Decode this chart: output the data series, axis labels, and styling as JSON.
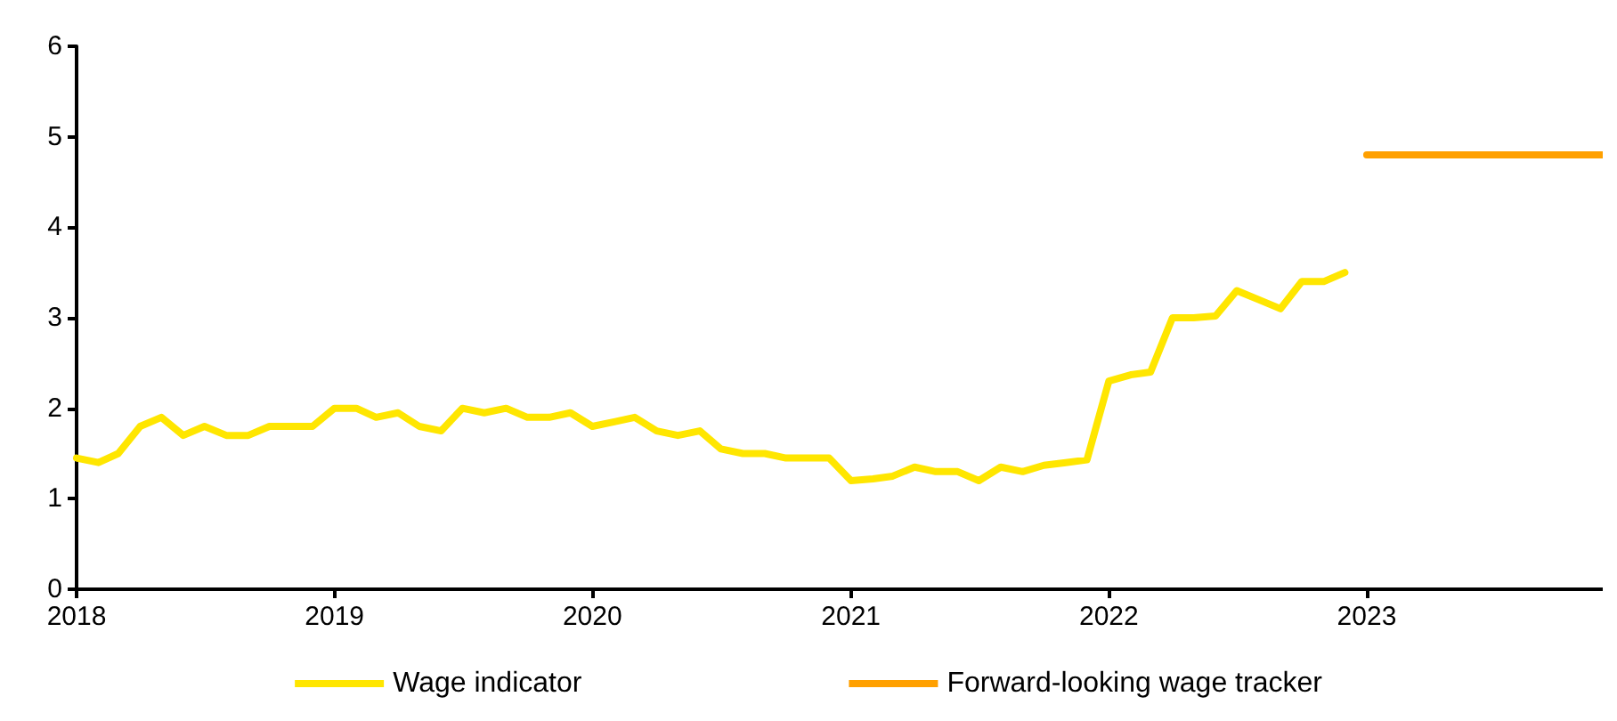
{
  "chart_data": {
    "type": "line",
    "legend": "bottom",
    "grid": false,
    "marker": "none",
    "line_style": "solid",
    "xlim": [
      "2018-01",
      "2023-12"
    ],
    "xticks": [
      "2018",
      "2019",
      "2020",
      "2021",
      "2022",
      "2023"
    ],
    "ylim": [
      0,
      6
    ],
    "yticks": [
      0,
      1,
      2,
      3,
      4,
      5,
      6
    ],
    "series": [
      {
        "name": "Wage indicator",
        "color": "#ffe600",
        "x": [
          "2018-01",
          "2018-02",
          "2018-03",
          "2018-04",
          "2018-05",
          "2018-06",
          "2018-07",
          "2018-08",
          "2018-09",
          "2018-10",
          "2018-11",
          "2018-12",
          "2019-01",
          "2019-02",
          "2019-03",
          "2019-04",
          "2019-05",
          "2019-06",
          "2019-07",
          "2019-08",
          "2019-09",
          "2019-10",
          "2019-11",
          "2019-12",
          "2020-01",
          "2020-02",
          "2020-03",
          "2020-04",
          "2020-05",
          "2020-06",
          "2020-07",
          "2020-08",
          "2020-09",
          "2020-10",
          "2020-11",
          "2020-12",
          "2021-01",
          "2021-02",
          "2021-03",
          "2021-04",
          "2021-05",
          "2021-06",
          "2021-07",
          "2021-08",
          "2021-09",
          "2021-10",
          "2021-11",
          "2021-12",
          "2022-01",
          "2022-02",
          "2022-03",
          "2022-04",
          "2022-05",
          "2022-06",
          "2022-07",
          "2022-08",
          "2022-09",
          "2022-10",
          "2022-11",
          "2022-12"
        ],
        "values": [
          1.45,
          1.4,
          1.5,
          1.8,
          1.9,
          1.7,
          1.8,
          1.7,
          1.7,
          1.8,
          1.8,
          1.8,
          2.0,
          2.0,
          1.9,
          1.95,
          1.8,
          1.75,
          2.0,
          1.95,
          2.0,
          1.9,
          1.9,
          1.95,
          1.8,
          1.85,
          1.9,
          1.75,
          1.7,
          1.75,
          1.55,
          1.5,
          1.5,
          1.45,
          1.45,
          1.45,
          1.2,
          1.22,
          1.25,
          1.35,
          1.3,
          1.3,
          1.2,
          1.35,
          1.3,
          1.37,
          1.4,
          1.43,
          2.3,
          2.37,
          2.4,
          3.0,
          3.0,
          3.02,
          3.3,
          3.2,
          3.1,
          3.4,
          3.4,
          3.5
        ]
      },
      {
        "name": "Forward-looking wage tracker",
        "color": "#ffa000",
        "x": [
          "2023-01",
          "2023-12"
        ],
        "values": [
          4.8,
          4.8
        ]
      }
    ]
  }
}
